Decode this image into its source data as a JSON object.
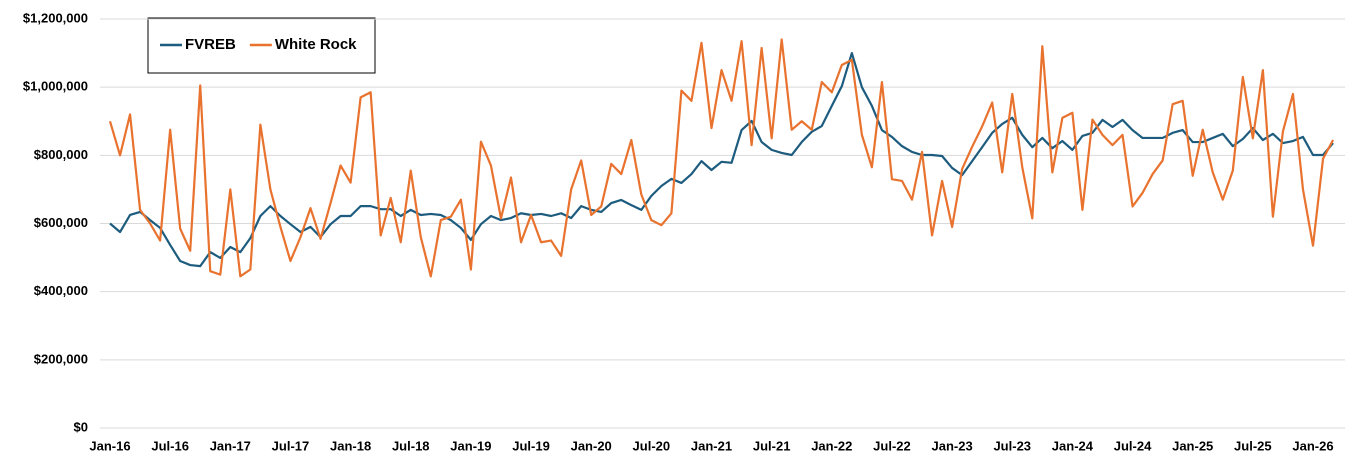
{
  "chart_data": {
    "type": "line",
    "categories": [
      "Jan-16",
      null,
      null,
      null,
      null,
      null,
      "Jul-16",
      null,
      null,
      null,
      null,
      null,
      "Jan-17",
      null,
      null,
      null,
      null,
      null,
      "Jul-17",
      null,
      null,
      null,
      null,
      null,
      "Jan-18",
      null,
      null,
      null,
      null,
      null,
      "Jul-18",
      null,
      null,
      null,
      null,
      null,
      "Jan-19",
      null,
      null,
      null,
      null,
      null,
      "Jul-19",
      null,
      null,
      null,
      null,
      null,
      "Jan-20",
      null,
      null,
      null,
      null,
      null,
      "Jul-20",
      null,
      null,
      null,
      null,
      null,
      "Jan-21",
      null,
      null,
      null,
      null,
      null,
      "Jul-21",
      null,
      null,
      null,
      null,
      null,
      "Jan-22",
      null,
      null,
      null,
      null,
      null,
      "Jul-22",
      null,
      null,
      null,
      null,
      null,
      "Jan-23",
      null,
      null,
      null,
      null,
      null,
      "Jul-23",
      null,
      null,
      null,
      null,
      null,
      "Jan-24",
      null,
      null,
      null,
      null,
      null,
      "Jul-24",
      null,
      null,
      null,
      null,
      null,
      "Jan-25",
      null,
      null,
      null,
      null,
      null,
      "Jul-25",
      null,
      null,
      null,
      null,
      null,
      "Jan-26",
      null,
      null
    ],
    "series": [
      {
        "name": "FVREB",
        "color": "#1d5c7e",
        "values": [
          600000,
          575000,
          625000,
          634000,
          610000,
          587000,
          537000,
          490000,
          478000,
          475000,
          516000,
          499000,
          531000,
          516000,
          557000,
          622000,
          651000,
          622000,
          598000,
          575000,
          590000,
          560000,
          598000,
          622000,
          622000,
          651000,
          651000,
          642000,
          642000,
          622000,
          640000,
          625000,
          628000,
          625000,
          610000,
          587000,
          552000,
          598000,
          622000,
          610000,
          616000,
          630000,
          625000,
          628000,
          622000,
          630000,
          616000,
          651000,
          640000,
          634000,
          660000,
          669000,
          654000,
          640000,
          681000,
          710000,
          731000,
          719000,
          745000,
          783000,
          757000,
          781000,
          778000,
          874000,
          901000,
          839000,
          816000,
          807000,
          801000,
          839000,
          869000,
          886000,
          945000,
          1003000,
          1100000,
          1000000,
          945000,
          874000,
          854000,
          827000,
          810000,
          801000,
          801000,
          798000,
          763000,
          742000,
          783000,
          824000,
          866000,
          892000,
          910000,
          860000,
          824000,
          851000,
          821000,
          842000,
          816000,
          857000,
          866000,
          904000,
          883000,
          904000,
          874000,
          851000,
          851000,
          851000,
          866000,
          874000,
          839000,
          839000,
          851000,
          863000,
          827000,
          848000,
          880000,
          845000,
          863000,
          836000,
          842000,
          854000,
          801000,
          801000,
          836000
        ]
      },
      {
        "name": "White Rock",
        "color": "#e8722e",
        "values": [
          900000,
          800000,
          920000,
          640000,
          600000,
          550000,
          875000,
          585000,
          520000,
          1005000,
          460000,
          450000,
          700000,
          445000,
          465000,
          890000,
          700000,
          590000,
          490000,
          560000,
          645000,
          555000,
          660000,
          770000,
          720000,
          970000,
          985000,
          565000,
          675000,
          545000,
          755000,
          560000,
          445000,
          610000,
          620000,
          670000,
          465000,
          840000,
          770000,
          615000,
          735000,
          545000,
          625000,
          545000,
          550000,
          505000,
          700000,
          785000,
          625000,
          650000,
          775000,
          745000,
          845000,
          685000,
          610000,
          595000,
          630000,
          990000,
          960000,
          1130000,
          880000,
          1050000,
          960000,
          1135000,
          830000,
          1115000,
          850000,
          1140000,
          875000,
          900000,
          875000,
          1015000,
          985000,
          1065000,
          1080000,
          860000,
          765000,
          1015000,
          730000,
          725000,
          670000,
          810000,
          565000,
          725000,
          590000,
          760000,
          825000,
          885000,
          955000,
          750000,
          980000,
          765000,
          615000,
          1120000,
          750000,
          910000,
          925000,
          640000,
          905000,
          860000,
          830000,
          860000,
          650000,
          690000,
          745000,
          785000,
          950000,
          960000,
          740000,
          875000,
          750000,
          670000,
          755000,
          1030000,
          850000,
          1050000,
          620000,
          870000,
          980000,
          700000,
          535000,
          790000,
          845000
        ]
      }
    ],
    "ylim": [
      0,
      1200000
    ],
    "yticks": [
      {
        "value": 0,
        "label": "$0"
      },
      {
        "value": 200000,
        "label": "$200,000"
      },
      {
        "value": 400000,
        "label": "$400,000"
      },
      {
        "value": 600000,
        "label": "$600,000"
      },
      {
        "value": 800000,
        "label": "$800,000"
      },
      {
        "value": 1000000,
        "label": "$1,000,000"
      },
      {
        "value": 1200000,
        "label": "$1,200,000"
      }
    ],
    "grid": true
  }
}
